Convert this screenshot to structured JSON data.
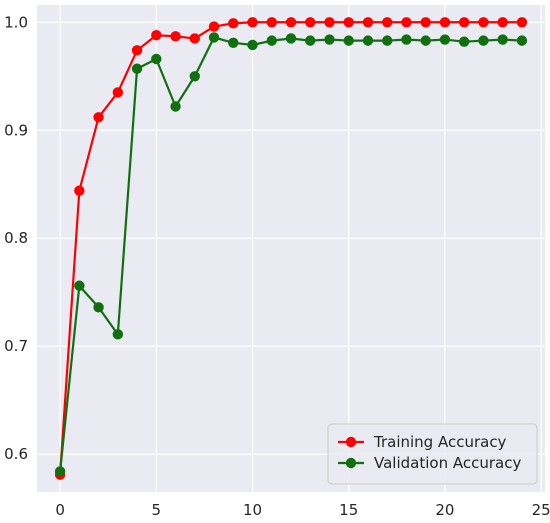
{
  "chart_data": {
    "type": "line",
    "title": "",
    "xlabel": "",
    "ylabel": "",
    "x": [
      0,
      1,
      2,
      3,
      4,
      5,
      6,
      7,
      8,
      9,
      10,
      11,
      12,
      13,
      14,
      15,
      16,
      17,
      18,
      19,
      20,
      21,
      22,
      23,
      24
    ],
    "xlim": [
      -1.2,
      25.2
    ],
    "ylim": [
      0.565,
      1.016
    ],
    "xticks": [
      0,
      5,
      10,
      15,
      20,
      25
    ],
    "yticks": [
      0.6,
      0.7,
      0.8,
      0.9,
      1.0
    ],
    "xtick_labels": [
      "0",
      "5",
      "10",
      "15",
      "20",
      "25"
    ],
    "ytick_labels": [
      "0.6",
      "0.7",
      "0.8",
      "0.9",
      "1.0"
    ],
    "grid": true,
    "background": "#eaeaf2",
    "legend": {
      "position": "lower-right"
    },
    "series": [
      {
        "name": "Training Accuracy",
        "color": "#ff0000",
        "values": [
          0.581,
          0.844,
          0.912,
          0.935,
          0.974,
          0.988,
          0.987,
          0.985,
          0.996,
          0.999,
          1.0,
          1.0,
          1.0,
          1.0,
          1.0,
          1.0,
          1.0,
          1.0,
          1.0,
          1.0,
          1.0,
          1.0,
          1.0,
          1.0,
          1.0
        ]
      },
      {
        "name": "Validation Accuracy",
        "color": "#107010",
        "values": [
          0.584,
          0.756,
          0.736,
          0.711,
          0.957,
          0.966,
          0.922,
          0.95,
          0.986,
          0.981,
          0.979,
          0.983,
          0.985,
          0.983,
          0.984,
          0.983,
          0.983,
          0.983,
          0.984,
          0.983,
          0.984,
          0.982,
          0.983,
          0.984,
          0.983
        ]
      }
    ]
  }
}
